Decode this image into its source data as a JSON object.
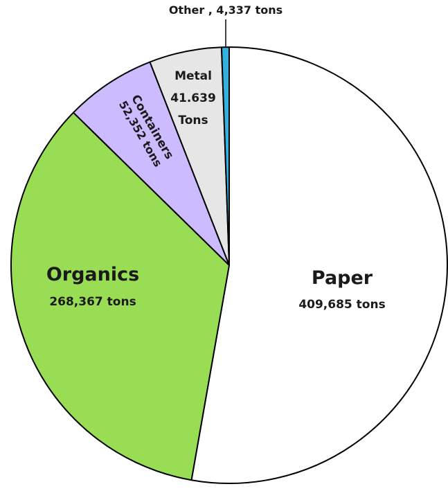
{
  "chart_data": {
    "type": "pie",
    "title": "",
    "slices": [
      {
        "key": "paper",
        "name": "Paper",
        "value_label": "409,685 tons",
        "value": 409685,
        "color": "#ffffff"
      },
      {
        "key": "organics",
        "name": "Organics",
        "value_label": "268,367 tons",
        "value": 268367,
        "color": "#99dd55"
      },
      {
        "key": "containers",
        "name": "Containers",
        "value_label": "52,352 tons",
        "value": 52352,
        "color": "#ccbbff"
      },
      {
        "key": "metal",
        "name": "Metal",
        "value_label": "41.639",
        "value_unit": "Tons",
        "value": 41639,
        "color": "#e6e6e6"
      },
      {
        "key": "other",
        "name": "Other",
        "value_label": "4,337  tons",
        "value": 4337,
        "color": "#33b0dd"
      }
    ],
    "other_callout": "Other , 4,337  tons"
  }
}
